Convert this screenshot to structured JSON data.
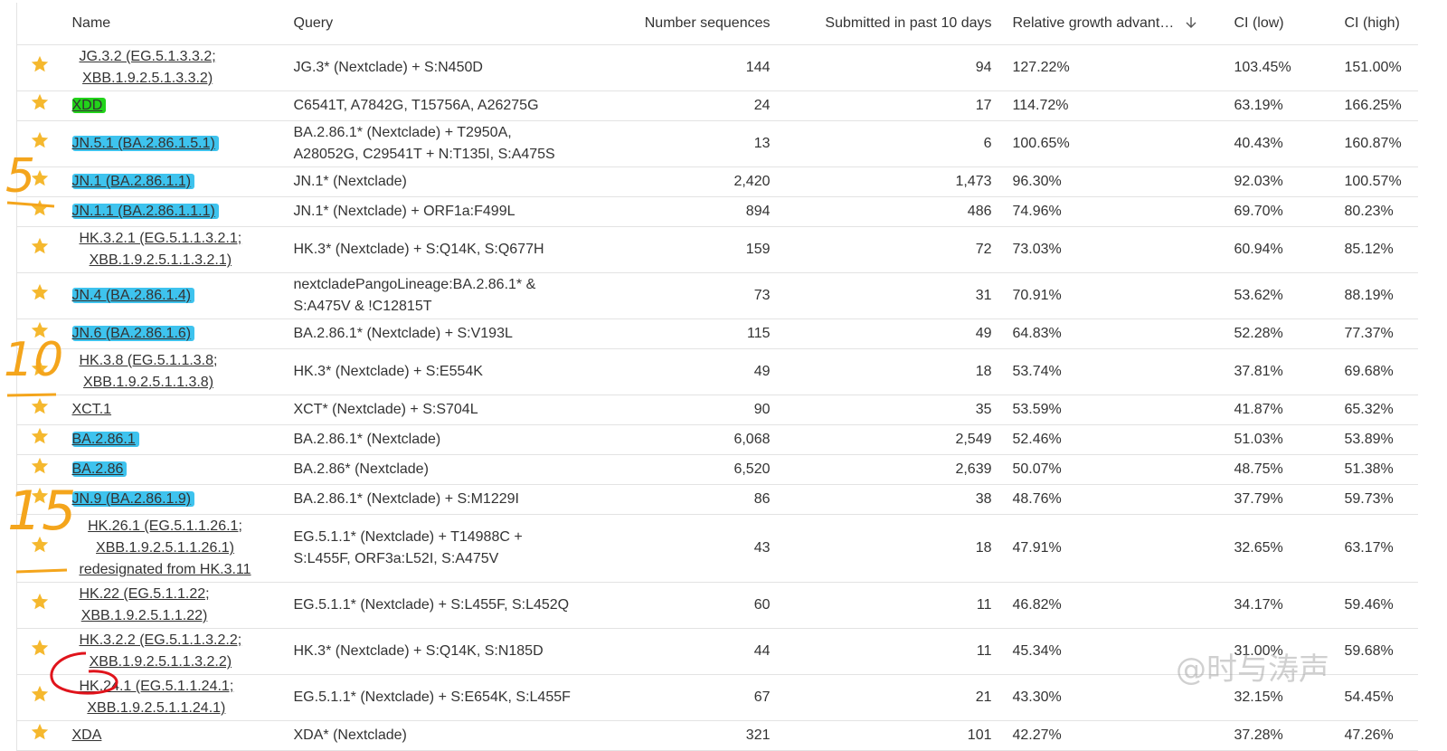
{
  "header": {
    "columns": [
      "Name",
      "Query",
      "Number sequences",
      "Submitted in past 10 days",
      "Relative growth advant…",
      "CI (low)",
      "CI (high)"
    ]
  },
  "table": {
    "rows": [
      {
        "name": [
          "JG.3.2 (EG.5.1.3.3.2;",
          "XBB.1.9.2.5.1.3.3.2)"
        ],
        "query": [
          "JG.3* (Nextclade) + S:N450D"
        ],
        "sequences": "144",
        "submitted": "94",
        "growth": "127.22%",
        "ci_low": "103.45%",
        "ci_high": "151.00%"
      },
      {
        "name": [
          "XDD"
        ],
        "highlight": "#22d31a",
        "query": [
          "C6541T, A7842G, T15756A, A26275G"
        ],
        "sequences": "24",
        "submitted": "17",
        "growth": "114.72%",
        "ci_low": "63.19%",
        "ci_high": "166.25%"
      },
      {
        "name": [
          "JN.5.1 (BA.2.86.1.5.1)"
        ],
        "highlight": "#3ec3ee",
        "query": [
          "BA.2.86.1* (Nextclade) + T2950A,",
          "A28052G, C29541T + N:T135I, S:A475S"
        ],
        "sequences": "13",
        "submitted": "6",
        "growth": "100.65%",
        "ci_low": "40.43%",
        "ci_high": "160.87%"
      },
      {
        "name": [
          "JN.1 (BA.2.86.1.1)"
        ],
        "highlight": "#3ec3ee",
        "query": [
          "JN.1* (Nextclade)"
        ],
        "sequences": "2,420",
        "submitted": "1,473",
        "growth": "96.30%",
        "ci_low": "92.03%",
        "ci_high": "100.57%"
      },
      {
        "name": [
          "JN.1.1 (BA.2.86.1.1.1)"
        ],
        "highlight": "#3ec3ee",
        "query": [
          "JN.1* (Nextclade) + ORF1a:F499L"
        ],
        "sequences": "894",
        "submitted": "486",
        "growth": "74.96%",
        "ci_low": "69.70%",
        "ci_high": "80.23%"
      },
      {
        "name": [
          "HK.3.2.1 (EG.5.1.1.3.2.1;",
          "XBB.1.9.2.5.1.1.3.2.1)"
        ],
        "query": [
          "HK.3* (Nextclade) + S:Q14K, S:Q677H"
        ],
        "sequences": "159",
        "submitted": "72",
        "growth": "73.03%",
        "ci_low": "60.94%",
        "ci_high": "85.12%"
      },
      {
        "name": [
          "JN.4 (BA.2.86.1.4)"
        ],
        "highlight": "#3ec3ee",
        "query": [
          "nextcladePangoLineage:BA.2.86.1* &",
          "S:A475V & !C12815T"
        ],
        "sequences": "73",
        "submitted": "31",
        "growth": "70.91%",
        "ci_low": "53.62%",
        "ci_high": "88.19%"
      },
      {
        "name": [
          "JN.6 (BA.2.86.1.6)"
        ],
        "highlight": "#3ec3ee",
        "query": [
          "BA.2.86.1* (Nextclade) + S:V193L"
        ],
        "sequences": "115",
        "submitted": "49",
        "growth": "64.83%",
        "ci_low": "52.28%",
        "ci_high": "77.37%"
      },
      {
        "name": [
          "HK.3.8 (EG.5.1.1.3.8;",
          "XBB.1.9.2.5.1.1.3.8)"
        ],
        "query": [
          "HK.3* (Nextclade) + S:E554K"
        ],
        "sequences": "49",
        "submitted": "18",
        "growth": "53.74%",
        "ci_low": "37.81%",
        "ci_high": "69.68%"
      },
      {
        "name": [
          "XCT.1"
        ],
        "query": [
          "XCT* (Nextclade) + S:S704L"
        ],
        "sequences": "90",
        "submitted": "35",
        "growth": "53.59%",
        "ci_low": "41.87%",
        "ci_high": "65.32%"
      },
      {
        "name": [
          "BA.2.86.1"
        ],
        "highlight": "#3ec3ee",
        "query": [
          "BA.2.86.1* (Nextclade)"
        ],
        "sequences": "6,068",
        "submitted": "2,549",
        "growth": "52.46%",
        "ci_low": "51.03%",
        "ci_high": "53.89%"
      },
      {
        "name": [
          "BA.2.86"
        ],
        "highlight": "#3ec3ee",
        "query": [
          "BA.2.86* (Nextclade)"
        ],
        "sequences": "6,520",
        "submitted": "2,639",
        "growth": "50.07%",
        "ci_low": "48.75%",
        "ci_high": "51.38%"
      },
      {
        "name": [
          "JN.9 (BA.2.86.1.9)"
        ],
        "highlight": "#3ec3ee",
        "query": [
          "BA.2.86.1* (Nextclade) + S:M1229I"
        ],
        "sequences": "86",
        "submitted": "38",
        "growth": "48.76%",
        "ci_low": "37.79%",
        "ci_high": "59.73%"
      },
      {
        "name": [
          "HK.26.1 (EG.5.1.1.26.1;",
          "XBB.1.9.2.5.1.1.26.1)",
          "redesignated from HK.3.11"
        ],
        "query": [
          "EG.5.1.1* (Nextclade) + T14988C +",
          "S:L455F, ORF3a:L52I, S:A475V"
        ],
        "sequences": "43",
        "submitted": "18",
        "growth": "47.91%",
        "ci_low": "32.65%",
        "ci_high": "63.17%"
      },
      {
        "name": [
          "HK.22 (EG.5.1.1.22;",
          "XBB.1.9.2.5.1.1.22)"
        ],
        "query": [
          "EG.5.1.1* (Nextclade) + S:L455F, S:L452Q"
        ],
        "sequences": "60",
        "submitted": "11",
        "growth": "46.82%",
        "ci_low": "34.17%",
        "ci_high": "59.46%"
      },
      {
        "name": [
          "HK.3.2.2 (EG.5.1.1.3.2.2;",
          "XBB.1.9.2.5.1.1.3.2.2)"
        ],
        "query": [
          "HK.3* (Nextclade) + S:Q14K, S:N185D"
        ],
        "sequences": "44",
        "submitted": "11",
        "growth": "45.34%",
        "ci_low": "31.00%",
        "ci_high": "59.68%"
      },
      {
        "name": [
          "HK.24.1 (EG.5.1.1.24.1;",
          "XBB.1.9.2.5.1.1.24.1)"
        ],
        "query": [
          "EG.5.1.1* (Nextclade) + S:E654K, S:L455F"
        ],
        "sequences": "67",
        "submitted": "21",
        "growth": "43.30%",
        "ci_low": "32.15%",
        "ci_high": "54.45%"
      },
      {
        "name": [
          "XDA"
        ],
        "query": [
          "XDA* (Nextclade)"
        ],
        "sequences": "321",
        "submitted": "101",
        "growth": "42.27%",
        "ci_low": "37.28%",
        "ci_high": "47.26%"
      }
    ]
  },
  "annotations": [
    "5",
    "10",
    "15"
  ],
  "watermark": "@时与涛声"
}
